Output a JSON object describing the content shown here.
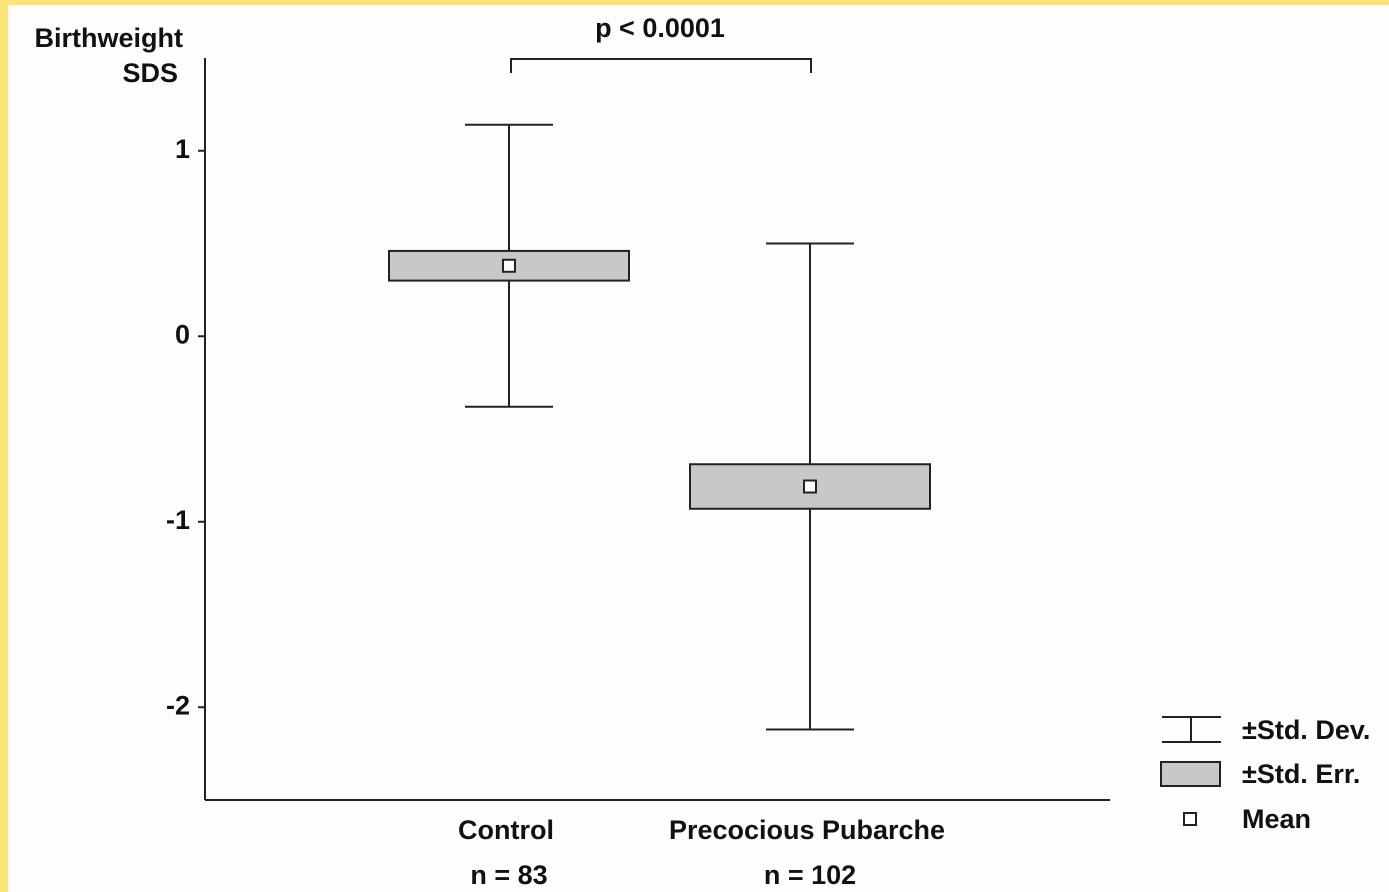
{
  "chart_data": {
    "type": "meanbox",
    "title": "p < 0.0001",
    "y_label": [
      "Birthweight",
      "SDS"
    ],
    "categories": [
      "Control",
      "Precocious Pubarche"
    ],
    "n_labels": [
      "n = 83",
      "n = 102"
    ],
    "mean": [
      0.38,
      -0.81
    ],
    "se": [
      0.08,
      0.12
    ],
    "sd": [
      0.76,
      1.31
    ],
    "box_color": "#c8c8c8",
    "legend": {
      "sd": "±Std. Dev.",
      "se": "±Std. Err.",
      "mean": "Mean"
    },
    "ylim": [
      -2.5,
      1.5
    ],
    "yticks": [
      -2,
      -1,
      0,
      1
    ]
  }
}
